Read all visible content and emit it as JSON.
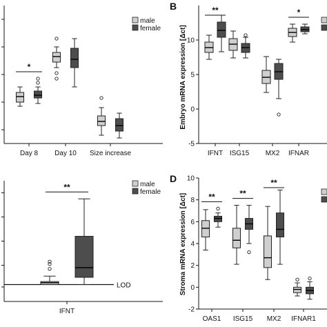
{
  "colors": {
    "male": "#cfcfcf",
    "female": "#4d4d4d",
    "axis": "#111111",
    "box_edge": "#222222"
  },
  "panels": {
    "B": {
      "label": "B"
    },
    "D": {
      "label": "D"
    }
  },
  "chart_data": [
    {
      "id": "A",
      "type": "boxplot",
      "title": "",
      "ylabel": "",
      "ylim": [
        0,
        1.0
      ],
      "categories": [
        "Day 8",
        "Day 10",
        "Size increase"
      ],
      "legend": {
        "entries": [
          "male",
          "female"
        ],
        "position": "top-right"
      },
      "series": [
        {
          "name": "male",
          "color": "#cfcfcf",
          "boxes": [
            {
              "min": 0.27,
              "q1": 0.3,
              "median": 0.34,
              "q3": 0.37,
              "max": 0.41,
              "outliers": []
            },
            {
              "min": 0.55,
              "q1": 0.59,
              "median": 0.63,
              "q3": 0.66,
              "max": 0.7,
              "outliers": [
                0.51,
                0.47,
                0.76
              ]
            },
            {
              "min": 0.06,
              "q1": 0.13,
              "median": 0.16,
              "q3": 0.2,
              "max": 0.26,
              "outliers": [
                0.33
              ]
            }
          ]
        },
        {
          "name": "female",
          "color": "#4d4d4d",
          "boxes": [
            {
              "min": 0.29,
              "q1": 0.33,
              "median": 0.35,
              "q3": 0.38,
              "max": 0.41,
              "outliers": [
                0.44,
                0.47
              ]
            },
            {
              "min": 0.41,
              "q1": 0.55,
              "median": 0.61,
              "q3": 0.69,
              "max": 0.76,
              "outliers": []
            },
            {
              "min": 0.04,
              "q1": 0.09,
              "median": 0.13,
              "q3": 0.18,
              "max": 0.22,
              "outliers": []
            }
          ]
        }
      ],
      "annotations": [
        {
          "text": "*",
          "category": 0
        }
      ]
    },
    {
      "id": "B",
      "type": "boxplot",
      "title": "",
      "ylabel": "Embryo mRNA expression [Δct]",
      "ylim": [
        -5,
        15
      ],
      "yticks": [
        -5,
        0,
        5,
        10
      ],
      "categories": [
        "IFNT",
        "ISG15",
        "MX2",
        "IFNAR"
      ],
      "legend": {
        "entries": [
          "male",
          "female"
        ],
        "position": "top-right"
      },
      "series": [
        {
          "name": "male",
          "color": "#cfcfcf",
          "boxes": [
            {
              "min": 7.2,
              "q1": 8.2,
              "median": 8.9,
              "q3": 9.7,
              "max": 10.7,
              "outliers": []
            },
            {
              "min": 7.4,
              "q1": 8.5,
              "median": 9.4,
              "q3": 10.2,
              "max": 11.3,
              "outliers": []
            },
            {
              "min": 2.4,
              "q1": 3.7,
              "median": 4.6,
              "q3": 5.6,
              "max": 7.6,
              "outliers": []
            },
            {
              "min": 9.7,
              "q1": 10.5,
              "median": 11.1,
              "q3": 11.7,
              "max": 12.3,
              "outliers": []
            }
          ]
        },
        {
          "name": "female",
          "color": "#4d4d4d",
          "boxes": [
            {
              "min": 8.3,
              "q1": 10.4,
              "median": 11.4,
              "q3": 12.6,
              "max": 13.6,
              "outliers": []
            },
            {
              "min": 7.4,
              "q1": 8.2,
              "median": 8.9,
              "q3": 9.5,
              "max": 10.4,
              "outliers": [
                10.7
              ]
            },
            {
              "min": 1.5,
              "q1": 4.3,
              "median": 5.4,
              "q3": 6.6,
              "max": 7.2,
              "outliers": [
                -0.8
              ]
            },
            {
              "min": 10.9,
              "q1": 11.2,
              "median": 11.5,
              "q3": 11.9,
              "max": 12.3,
              "outliers": []
            }
          ]
        }
      ],
      "annotations": [
        {
          "text": "**",
          "category": 0
        },
        {
          "text": "*",
          "category": 3
        }
      ]
    },
    {
      "id": "C",
      "type": "boxplot",
      "title": "",
      "ylabel": "",
      "ylim": [
        0,
        1.0
      ],
      "categories": [
        "IFNT"
      ],
      "reference_line": {
        "label": "LOD",
        "value": 0.14
      },
      "legend": {
        "entries": [
          "male",
          "female"
        ],
        "position": "top-right"
      },
      "series": [
        {
          "name": "male",
          "color": "#cfcfcf",
          "boxes": [
            {
              "min": 0.14,
              "q1": 0.14,
              "median": 0.155,
              "q3": 0.165,
              "max": 0.21,
              "outliers": [
                0.27,
                0.31,
                0.33
              ]
            }
          ]
        },
        {
          "name": "female",
          "color": "#4d4d4d",
          "boxes": [
            {
              "min": 0.14,
              "q1": 0.2,
              "median": 0.28,
              "q3": 0.54,
              "max": 0.85,
              "outliers": []
            }
          ]
        }
      ],
      "annotations": [
        {
          "text": "**",
          "category": 0
        }
      ]
    },
    {
      "id": "D",
      "type": "boxplot",
      "title": "",
      "ylabel": "Stroma mRNA expression [Δct]",
      "ylim": [
        -2,
        10
      ],
      "yticks": [
        -2,
        0,
        2,
        4,
        6,
        8,
        10
      ],
      "categories": [
        "OAS1",
        "ISG15",
        "MX2",
        "IFNAR1"
      ],
      "legend": {
        "entries": [
          "male",
          "female"
        ],
        "position": "top-right"
      },
      "series": [
        {
          "name": "male",
          "color": "#cfcfcf",
          "boxes": [
            {
              "min": 3.4,
              "q1": 4.6,
              "median": 5.4,
              "q3": 6.1,
              "max": 7.1,
              "outliers": []
            },
            {
              "min": 2.1,
              "q1": 3.6,
              "median": 4.3,
              "q3": 5.4,
              "max": 7.5,
              "outliers": []
            },
            {
              "min": 0.7,
              "q1": 1.8,
              "median": 2.7,
              "q3": 4.7,
              "max": 7.4,
              "outliers": []
            },
            {
              "min": -0.8,
              "q1": -0.5,
              "median": -0.2,
              "q3": 0.0,
              "max": 0.4,
              "outliers": [
                0.7
              ]
            }
          ]
        },
        {
          "name": "female",
          "color": "#4d4d4d",
          "boxes": [
            {
              "min": 5.5,
              "q1": 6.0,
              "median": 6.3,
              "q3": 6.5,
              "max": 6.8,
              "outliers": [
                7.2
              ]
            },
            {
              "min": 4.0,
              "q1": 5.3,
              "median": 5.8,
              "q3": 6.3,
              "max": 7.5,
              "outliers": [
                3.2
              ]
            },
            {
              "min": 2.1,
              "q1": 4.6,
              "median": 5.3,
              "q3": 6.8,
              "max": 8.9,
              "outliers": []
            },
            {
              "min": -1.1,
              "q1": -0.6,
              "median": -0.3,
              "q3": 0.0,
              "max": 0.5,
              "outliers": [
                0.8
              ]
            }
          ]
        }
      ],
      "annotations": [
        {
          "text": "**",
          "category": 0
        },
        {
          "text": "**",
          "category": 1
        },
        {
          "text": "**",
          "category": 2
        }
      ]
    }
  ]
}
